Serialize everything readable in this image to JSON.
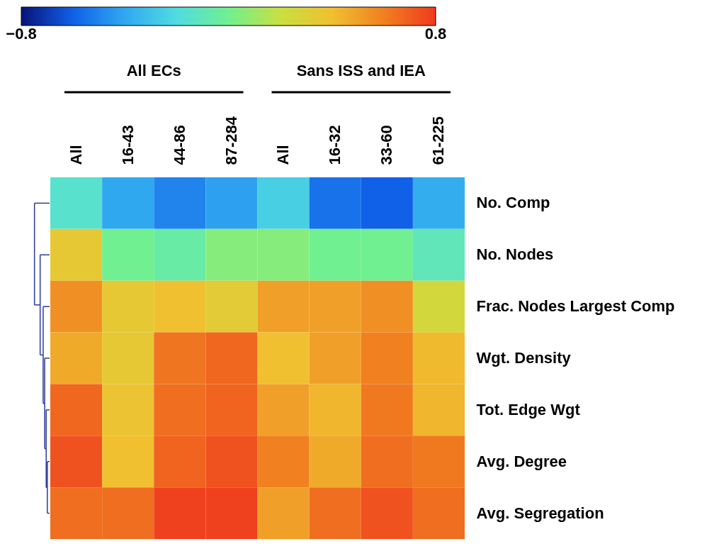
{
  "chart_data": {
    "type": "heatmap",
    "categories": [
      "All",
      "16-43",
      "44-86",
      "87-284",
      "All",
      "16-32",
      "33-60",
      "61-225"
    ],
    "y_categories": [
      "No. Comp",
      "No. Nodes",
      "Frac. Nodes Largest Comp",
      "Wgt. Density",
      "Tot. Edge Wgt",
      "Avg. Degree",
      "Avg. Segregation"
    ],
    "cells": [
      [
        -0.15,
        -0.4,
        -0.5,
        -0.42,
        -0.25,
        -0.55,
        -0.6,
        -0.38
      ],
      [
        0.35,
        0.0,
        -0.05,
        0.05,
        0.05,
        0.0,
        0.0,
        -0.1
      ],
      [
        0.55,
        0.35,
        0.4,
        0.33,
        0.5,
        0.5,
        0.55,
        0.25
      ],
      [
        0.47,
        0.35,
        0.63,
        0.67,
        0.4,
        0.5,
        0.6,
        0.42
      ],
      [
        0.67,
        0.38,
        0.65,
        0.68,
        0.5,
        0.43,
        0.62,
        0.43
      ],
      [
        0.73,
        0.4,
        0.68,
        0.73,
        0.6,
        0.47,
        0.65,
        0.62
      ],
      [
        0.65,
        0.65,
        0.78,
        0.78,
        0.5,
        0.65,
        0.73,
        0.65
      ]
    ],
    "clim": [
      -0.8,
      0.8
    ],
    "cticks": [
      -0.8,
      0.8
    ],
    "annotations": [
      "All ECs",
      "Sans ISS and IEA"
    ]
  }
}
